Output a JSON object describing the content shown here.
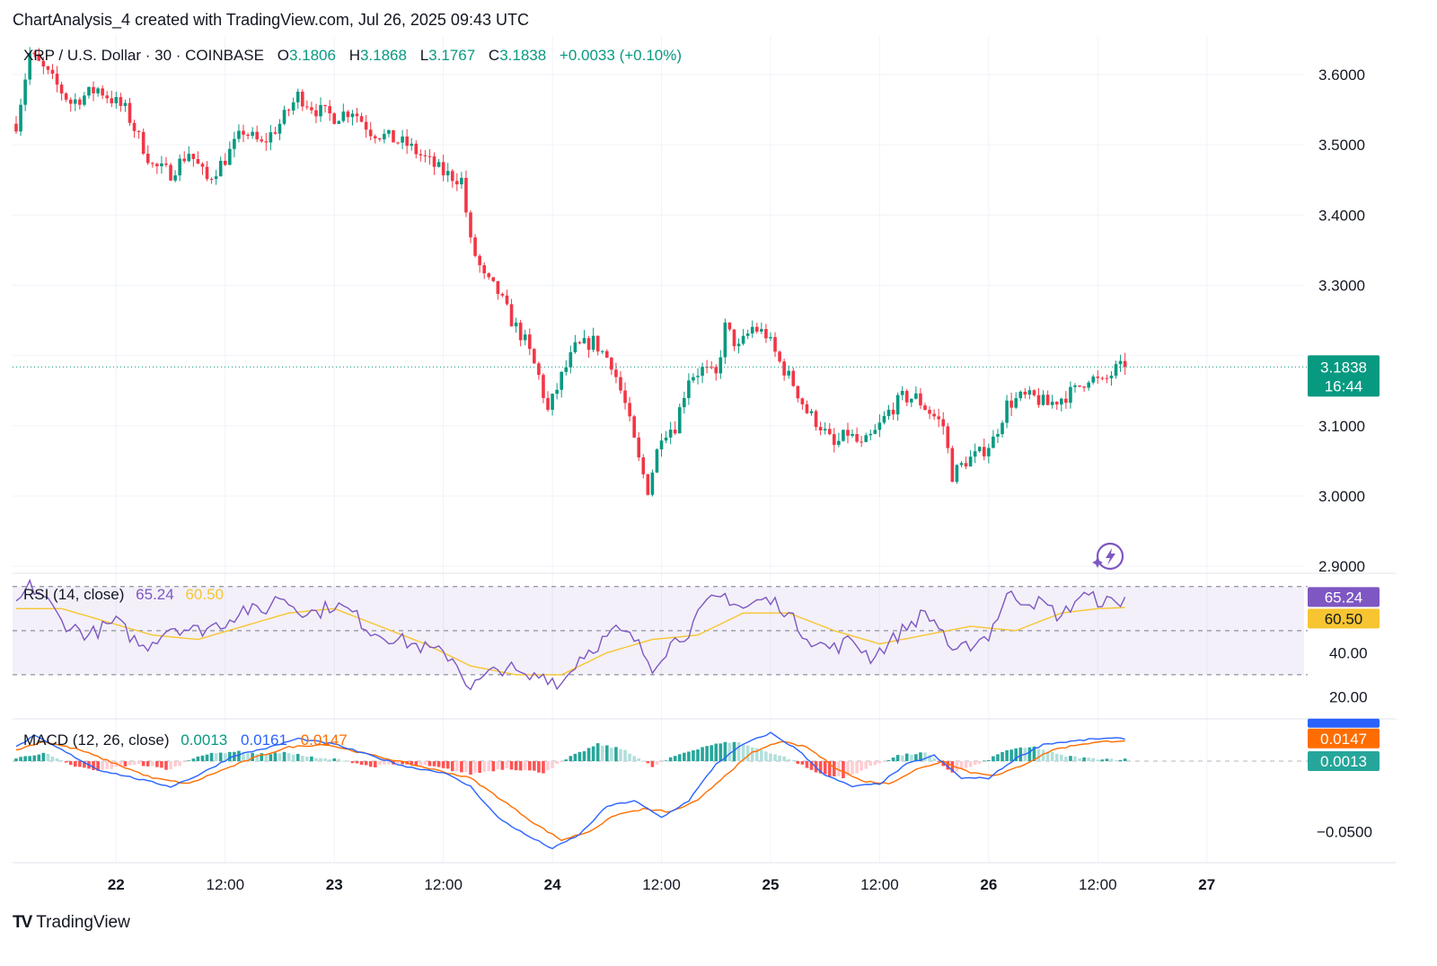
{
  "credit": "ChartAnalysis_4 created with TradingView.com, Jul 26, 2025 09:43 UTC",
  "brand": {
    "logo": "TV",
    "name": "TradingView"
  },
  "header": {
    "symbol": "XRP / U.S. Dollar · 30 · COINBASE",
    "o_label": "O",
    "o": "3.1806",
    "h_label": "H",
    "h": "3.1868",
    "l_label": "L",
    "l": "3.1767",
    "c_label": "C",
    "c": "3.1838",
    "change": "+0.0033 (+0.10%)"
  },
  "rsi_legend": {
    "name": "RSI (14, close)",
    "value": "65.24",
    "ma": "60.50"
  },
  "macd_legend": {
    "name": "MACD (12, 26, close)",
    "hist": "0.0013",
    "macd": "0.0161",
    "signal": "0.0147"
  },
  "colors": {
    "up": "#089981",
    "down": "#f23645",
    "rsi": "#7e57c2",
    "rsi_ma": "#f7c531",
    "macd": "#2962ff",
    "signal": "#ff6d00"
  },
  "chart_data": [
    {
      "type": "candlestick",
      "title": "XRP / U.S. Dollar · 30 · COINBASE",
      "x_ticks": [
        "22",
        "12:00",
        "23",
        "12:00",
        "24",
        "12:00",
        "25",
        "12:00",
        "26",
        "12:00",
        "27"
      ],
      "y_ticks": [
        "3.6000",
        "3.5000",
        "3.4000",
        "3.3000",
        "3.2000",
        "3.1000",
        "3.0000",
        "2.9000"
      ],
      "ylim": [
        2.89,
        3.655
      ],
      "grid": true,
      "last_price": "3.1838",
      "countdown": "16:44",
      "anchors": [
        [
          0,
          3.53
        ],
        [
          3,
          3.63
        ],
        [
          7,
          3.6
        ],
        [
          12,
          3.56
        ],
        [
          18,
          3.58
        ],
        [
          24,
          3.55
        ],
        [
          30,
          3.47
        ],
        [
          34,
          3.46
        ],
        [
          38,
          3.49
        ],
        [
          42,
          3.45
        ],
        [
          46,
          3.48
        ],
        [
          50,
          3.52
        ],
        [
          54,
          3.5
        ],
        [
          58,
          3.53
        ],
        [
          62,
          3.57
        ],
        [
          66,
          3.55
        ],
        [
          70,
          3.54
        ],
        [
          74,
          3.55
        ],
        [
          78,
          3.52
        ],
        [
          82,
          3.51
        ],
        [
          86,
          3.5
        ],
        [
          90,
          3.48
        ],
        [
          94,
          3.46
        ],
        [
          98,
          3.45
        ],
        [
          100,
          3.36
        ],
        [
          103,
          3.31
        ],
        [
          106,
          3.29
        ],
        [
          109,
          3.25
        ],
        [
          112,
          3.22
        ],
        [
          115,
          3.17
        ],
        [
          117,
          3.12
        ],
        [
          120,
          3.17
        ],
        [
          123,
          3.21
        ],
        [
          127,
          3.22
        ],
        [
          131,
          3.19
        ],
        [
          134,
          3.13
        ],
        [
          137,
          3.05
        ],
        [
          139,
          3.01
        ],
        [
          142,
          3.09
        ],
        [
          145,
          3.1
        ],
        [
          148,
          3.17
        ],
        [
          151,
          3.18
        ],
        [
          154,
          3.17
        ],
        [
          156,
          3.24
        ],
        [
          159,
          3.21
        ],
        [
          162,
          3.24
        ],
        [
          165,
          3.23
        ],
        [
          168,
          3.19
        ],
        [
          171,
          3.16
        ],
        [
          174,
          3.12
        ],
        [
          177,
          3.1
        ],
        [
          180,
          3.07
        ],
        [
          183,
          3.09
        ],
        [
          186,
          3.07
        ],
        [
          189,
          3.09
        ],
        [
          192,
          3.12
        ],
        [
          195,
          3.14
        ],
        [
          198,
          3.14
        ],
        [
          201,
          3.12
        ],
        [
          204,
          3.1
        ],
        [
          206,
          3.03
        ],
        [
          209,
          3.05
        ],
        [
          212,
          3.06
        ],
        [
          215,
          3.08
        ],
        [
          218,
          3.13
        ],
        [
          221,
          3.14
        ],
        [
          224,
          3.14
        ],
        [
          227,
          3.13
        ],
        [
          230,
          3.14
        ],
        [
          233,
          3.15
        ],
        [
          236,
          3.17
        ],
        [
          239,
          3.16
        ],
        [
          242,
          3.18
        ],
        [
          244,
          3.1838
        ]
      ]
    },
    {
      "type": "line",
      "title": "RSI (14, close)",
      "y_ticks": [
        "40.00",
        "20.00"
      ],
      "levels": [
        70,
        50,
        30
      ],
      "ylim": [
        10,
        76
      ],
      "series": [
        {
          "name": "RSI",
          "anchors": [
            [
              0,
              62
            ],
            [
              3,
              70
            ],
            [
              6,
              66
            ],
            [
              10,
              54
            ],
            [
              16,
              48
            ],
            [
              22,
              54
            ],
            [
              28,
              42
            ],
            [
              34,
              52
            ],
            [
              40,
              50
            ],
            [
              46,
              54
            ],
            [
              50,
              60
            ],
            [
              54,
              58
            ],
            [
              58,
              66
            ],
            [
              62,
              60
            ],
            [
              66,
              58
            ],
            [
              70,
              62
            ],
            [
              74,
              58
            ],
            [
              78,
              50
            ],
            [
              84,
              46
            ],
            [
              90,
              42
            ],
            [
              96,
              38
            ],
            [
              100,
              24
            ],
            [
              104,
              30
            ],
            [
              108,
              34
            ],
            [
              112,
              28
            ],
            [
              116,
              30
            ],
            [
              120,
              26
            ],
            [
              124,
              38
            ],
            [
              128,
              44
            ],
            [
              132,
              50
            ],
            [
              136,
              46
            ],
            [
              140,
              34
            ],
            [
              144,
              44
            ],
            [
              148,
              50
            ],
            [
              152,
              62
            ],
            [
              156,
              66
            ],
            [
              160,
              60
            ],
            [
              164,
              64
            ],
            [
              168,
              62
            ],
            [
              172,
              52
            ],
            [
              176,
              44
            ],
            [
              180,
              42
            ],
            [
              184,
              46
            ],
            [
              188,
              38
            ],
            [
              192,
              44
            ],
            [
              196,
              52
            ],
            [
              200,
              58
            ],
            [
              204,
              50
            ],
            [
              206,
              38
            ],
            [
              210,
              44
            ],
            [
              214,
              48
            ],
            [
              218,
              66
            ],
            [
              222,
              64
            ],
            [
              226,
              62
            ],
            [
              230,
              56
            ],
            [
              234,
              66
            ],
            [
              238,
              64
            ],
            [
              242,
              62
            ],
            [
              244,
              65.24
            ]
          ]
        },
        {
          "name": "RSI MA",
          "anchors": [
            [
              0,
              60
            ],
            [
              10,
              60
            ],
            [
              20,
              54
            ],
            [
              30,
              48
            ],
            [
              40,
              46
            ],
            [
              50,
              52
            ],
            [
              60,
              58
            ],
            [
              70,
              60
            ],
            [
              80,
              52
            ],
            [
              90,
              44
            ],
            [
              100,
              34
            ],
            [
              110,
              30
            ],
            [
              120,
              30
            ],
            [
              130,
              40
            ],
            [
              140,
              46
            ],
            [
              150,
              48
            ],
            [
              160,
              58
            ],
            [
              170,
              58
            ],
            [
              180,
              50
            ],
            [
              190,
              44
            ],
            [
              200,
              48
            ],
            [
              210,
              52
            ],
            [
              220,
              50
            ],
            [
              230,
              58
            ],
            [
              238,
              60
            ],
            [
              244,
              60.5
            ]
          ]
        }
      ]
    },
    {
      "type": "bar",
      "title": "MACD (12, 26, close)",
      "y_ticks": [
        "−0.0500"
      ],
      "ylim": [
        -0.072,
        0.03
      ],
      "hist_anchors": [
        [
          0,
          0.002
        ],
        [
          6,
          0.006
        ],
        [
          12,
          -0.003
        ],
        [
          18,
          -0.007
        ],
        [
          26,
          -0.002
        ],
        [
          34,
          -0.006
        ],
        [
          40,
          0.004
        ],
        [
          48,
          0.007
        ],
        [
          54,
          0.005
        ],
        [
          60,
          0.006
        ],
        [
          66,
          0.002
        ],
        [
          72,
          0.001
        ],
        [
          78,
          -0.004
        ],
        [
          84,
          -0.002
        ],
        [
          92,
          -0.004
        ],
        [
          100,
          -0.009
        ],
        [
          108,
          -0.005
        ],
        [
          116,
          -0.008
        ],
        [
          122,
          0.003
        ],
        [
          128,
          0.012
        ],
        [
          134,
          0.008
        ],
        [
          140,
          -0.004
        ],
        [
          146,
          0.005
        ],
        [
          152,
          0.011
        ],
        [
          158,
          0.014
        ],
        [
          164,
          0.008
        ],
        [
          170,
          0.002
        ],
        [
          176,
          -0.008
        ],
        [
          182,
          -0.012
        ],
        [
          188,
          -0.004
        ],
        [
          194,
          0.004
        ],
        [
          200,
          0.006
        ],
        [
          206,
          -0.008
        ],
        [
          212,
          -0.002
        ],
        [
          218,
          0.008
        ],
        [
          224,
          0.01
        ],
        [
          230,
          0.004
        ],
        [
          236,
          0.002
        ],
        [
          244,
          0.0013
        ]
      ],
      "series": [
        {
          "name": "MACD",
          "anchors": [
            [
              0,
              0.01
            ],
            [
              4,
              0.018
            ],
            [
              10,
              0.008
            ],
            [
              18,
              -0.006
            ],
            [
              26,
              -0.012
            ],
            [
              34,
              -0.018
            ],
            [
              40,
              -0.01
            ],
            [
              48,
              0.004
            ],
            [
              56,
              0.01
            ],
            [
              62,
              0.016
            ],
            [
              70,
              0.012
            ],
            [
              78,
              0.004
            ],
            [
              86,
              -0.004
            ],
            [
              94,
              -0.008
            ],
            [
              100,
              -0.018
            ],
            [
              106,
              -0.04
            ],
            [
              112,
              -0.052
            ],
            [
              118,
              -0.062
            ],
            [
              124,
              -0.052
            ],
            [
              130,
              -0.032
            ],
            [
              136,
              -0.028
            ],
            [
              142,
              -0.04
            ],
            [
              148,
              -0.028
            ],
            [
              154,
              -0.002
            ],
            [
              160,
              0.012
            ],
            [
              166,
              0.02
            ],
            [
              172,
              0.008
            ],
            [
              178,
              -0.01
            ],
            [
              184,
              -0.018
            ],
            [
              190,
              -0.016
            ],
            [
              196,
              -0.002
            ],
            [
              202,
              0.004
            ],
            [
              208,
              -0.012
            ],
            [
              214,
              -0.012
            ],
            [
              220,
              0.002
            ],
            [
              226,
              0.012
            ],
            [
              232,
              0.014
            ],
            [
              238,
              0.016
            ],
            [
              244,
              0.0161
            ]
          ]
        },
        {
          "name": "Signal",
          "anchors": [
            [
              0,
              0.008
            ],
            [
              6,
              0.014
            ],
            [
              14,
              0.008
            ],
            [
              22,
              -0.002
            ],
            [
              30,
              -0.012
            ],
            [
              38,
              -0.016
            ],
            [
              44,
              -0.008
            ],
            [
              52,
              0.002
            ],
            [
              60,
              0.01
            ],
            [
              68,
              0.012
            ],
            [
              76,
              0.006
            ],
            [
              84,
              0.0
            ],
            [
              92,
              -0.006
            ],
            [
              100,
              -0.012
            ],
            [
              108,
              -0.03
            ],
            [
              114,
              -0.044
            ],
            [
              120,
              -0.056
            ],
            [
              126,
              -0.05
            ],
            [
              132,
              -0.038
            ],
            [
              138,
              -0.034
            ],
            [
              144,
              -0.036
            ],
            [
              150,
              -0.028
            ],
            [
              156,
              -0.01
            ],
            [
              162,
              0.006
            ],
            [
              168,
              0.014
            ],
            [
              174,
              0.01
            ],
            [
              180,
              -0.004
            ],
            [
              186,
              -0.014
            ],
            [
              192,
              -0.016
            ],
            [
              198,
              -0.006
            ],
            [
              204,
              0.0
            ],
            [
              210,
              -0.008
            ],
            [
              216,
              -0.01
            ],
            [
              222,
              -0.002
            ],
            [
              228,
              0.008
            ],
            [
              234,
              0.012
            ],
            [
              240,
              0.014
            ],
            [
              244,
              0.0147
            ]
          ]
        }
      ]
    }
  ]
}
